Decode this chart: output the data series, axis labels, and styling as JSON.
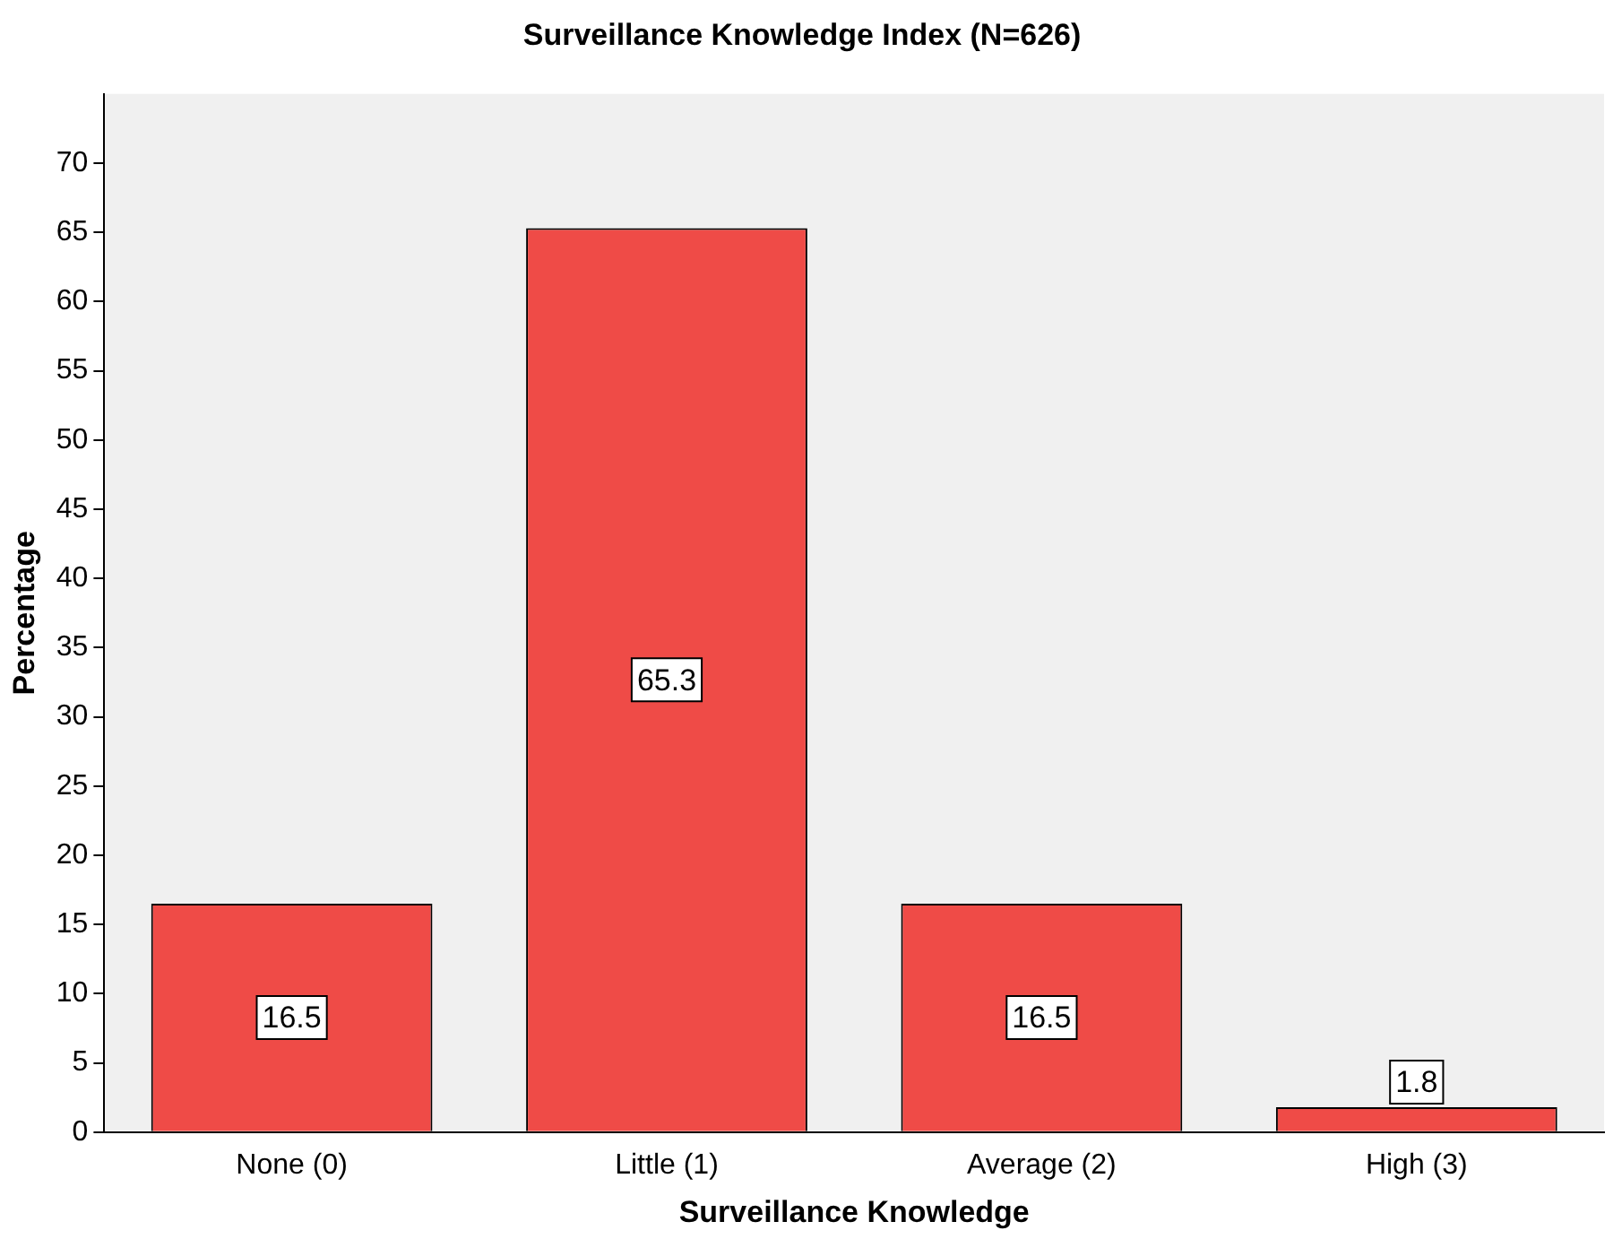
{
  "chart_data": {
    "type": "bar",
    "title": "Surveillance Knowledge Index (N=626)",
    "xlabel": "Surveillance Knowledge",
    "ylabel": "Percentage",
    "categories": [
      "None (0)",
      "Little (1)",
      "Average (2)",
      "High (3)"
    ],
    "values": [
      16.5,
      65.3,
      16.5,
      1.8
    ],
    "color": "#ef4b47",
    "ylim": [
      0,
      75
    ],
    "yticks": [
      0,
      5,
      10,
      15,
      20,
      25,
      30,
      35,
      40,
      45,
      50,
      55,
      60,
      65,
      70
    ],
    "grid": false,
    "data_labels": true,
    "legend": false
  }
}
